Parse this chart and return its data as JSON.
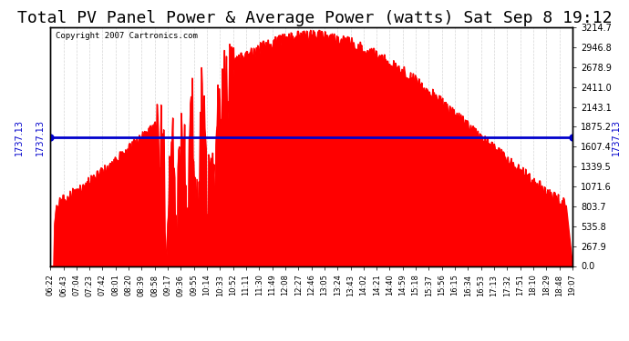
{
  "title": "Total PV Panel Power & Average Power (watts) Sat Sep 8 19:12",
  "copyright": "Copyright 2007 Cartronics.com",
  "average_power": 1737.13,
  "right_ytick_labels": [
    "0.0",
    "267.9",
    "535.8",
    "803.7",
    "1071.6",
    "1339.5",
    "1607.4",
    "1875.2",
    "2143.1",
    "2411.0",
    "2678.9",
    "2946.8",
    "3214.7"
  ],
  "right_ytick_values": [
    0.0,
    267.9,
    535.8,
    803.7,
    1071.6,
    1339.5,
    1607.4,
    1875.2,
    2143.1,
    2411.0,
    2678.9,
    2946.8,
    3214.7
  ],
  "ymax": 3214.7,
  "fill_color": "#FF0000",
  "line_color": "#FF0000",
  "avg_line_color": "#0000CC",
  "background_color": "#FFFFFF",
  "plot_bg_color": "#FFFFFF",
  "grid_color": "#CCCCCC",
  "title_fontsize": 13,
  "xtick_labels": [
    "06:22",
    "06:43",
    "07:04",
    "07:23",
    "07:42",
    "08:01",
    "08:20",
    "08:39",
    "08:58",
    "09:17",
    "09:36",
    "09:55",
    "10:14",
    "10:33",
    "10:52",
    "11:11",
    "11:30",
    "11:49",
    "12:08",
    "12:27",
    "12:46",
    "13:05",
    "13:24",
    "13:43",
    "14:02",
    "14:21",
    "14:40",
    "14:59",
    "15:18",
    "15:37",
    "15:56",
    "16:15",
    "16:34",
    "16:53",
    "17:13",
    "17:32",
    "17:51",
    "18:10",
    "18:29",
    "18:48",
    "19:07"
  ]
}
